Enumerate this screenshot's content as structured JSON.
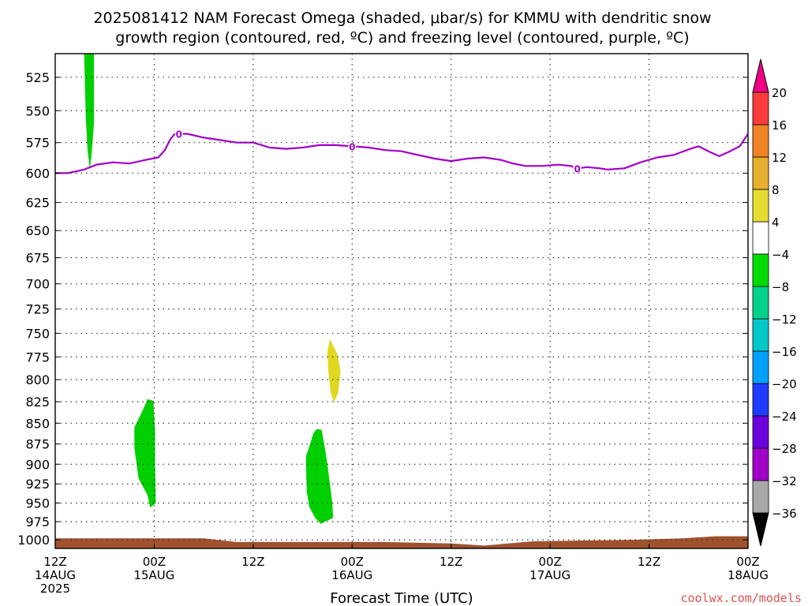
{
  "title_line1": "2025081412 NAM Forecast Omega (shaded, μbar/s) for KMMU with dendritic snow",
  "title_line2": "growth region (contoured, red, ºC) and freezing level (contoured, purple, ºC)",
  "credit": "coolwx.com/models",
  "chart_data": {
    "type": "area",
    "xlabel": "Forecast Time (UTC)",
    "ylabel": "",
    "x_units": "hours since 2025-08-14 12Z",
    "xlim": [
      0,
      84
    ],
    "ylim": [
      1012,
      508
    ],
    "y_scale": "log",
    "y_ticks": [
      525,
      550,
      575,
      600,
      625,
      650,
      675,
      700,
      725,
      750,
      775,
      800,
      825,
      850,
      875,
      900,
      925,
      950,
      975,
      1000
    ],
    "x_ticks": [
      {
        "x": 0,
        "line1": "12Z",
        "line2": "14AUG",
        "line3": "2025"
      },
      {
        "x": 12,
        "line1": "00Z",
        "line2": "15AUG",
        "line3": ""
      },
      {
        "x": 24,
        "line1": "12Z",
        "line2": "",
        "line3": ""
      },
      {
        "x": 36,
        "line1": "00Z",
        "line2": "16AUG",
        "line3": ""
      },
      {
        "x": 48,
        "line1": "12Z",
        "line2": "",
        "line3": ""
      },
      {
        "x": 60,
        "line1": "00Z",
        "line2": "17AUG",
        "line3": ""
      },
      {
        "x": 72,
        "line1": "12Z",
        "line2": "",
        "line3": ""
      },
      {
        "x": 84,
        "line1": "00Z",
        "line2": "18AUG",
        "line3": ""
      }
    ],
    "grid": true,
    "freezing_level": {
      "label": "0",
      "color": "#a000c8",
      "label_x": [
        15,
        36,
        63.3
      ],
      "points": [
        [
          0,
          600
        ],
        [
          1.5,
          600
        ],
        [
          3.5,
          597
        ],
        [
          5,
          593
        ],
        [
          7,
          591
        ],
        [
          9,
          592
        ],
        [
          11,
          589
        ],
        [
          12.5,
          587
        ],
        [
          13.3,
          581
        ],
        [
          13.9,
          573
        ],
        [
          14.5,
          568
        ],
        [
          16,
          568
        ],
        [
          18,
          571
        ],
        [
          20,
          573
        ],
        [
          22,
          575
        ],
        [
          24,
          575
        ],
        [
          26,
          579
        ],
        [
          28,
          580
        ],
        [
          30,
          579
        ],
        [
          32,
          577
        ],
        [
          34,
          577
        ],
        [
          36,
          578
        ],
        [
          38,
          579
        ],
        [
          40,
          581
        ],
        [
          42,
          582
        ],
        [
          44,
          585
        ],
        [
          46,
          588
        ],
        [
          48,
          590
        ],
        [
          50,
          588
        ],
        [
          52,
          587
        ],
        [
          54,
          589
        ],
        [
          55.5,
          592
        ],
        [
          57,
          594
        ],
        [
          59,
          594
        ],
        [
          61,
          593
        ],
        [
          62.5,
          594
        ],
        [
          63.3,
          596
        ],
        [
          64.5,
          595
        ],
        [
          66,
          596
        ],
        [
          67,
          597
        ],
        [
          69,
          596
        ],
        [
          71,
          591
        ],
        [
          73,
          587
        ],
        [
          75,
          585
        ],
        [
          77,
          580
        ],
        [
          78,
          578
        ],
        [
          79.5,
          583
        ],
        [
          80.5,
          586
        ],
        [
          81.5,
          583
        ],
        [
          83,
          578
        ],
        [
          84,
          568
        ]
      ]
    },
    "omega_regions": [
      {
        "value_range": [
          -8,
          -4
        ],
        "color": "#00d000",
        "polygon": [
          [
            3.5,
            508
          ],
          [
            4.7,
            508
          ],
          [
            4.7,
            560
          ],
          [
            4.4,
            585
          ],
          [
            4.2,
            597
          ],
          [
            3.9,
            580
          ],
          [
            3.7,
            555
          ]
        ]
      },
      {
        "value_range": [
          -8,
          -4
        ],
        "color": "#00d000",
        "polygon": [
          [
            11.2,
            822
          ],
          [
            11.9,
            824
          ],
          [
            12.1,
            860
          ],
          [
            12.1,
            900
          ],
          [
            12.2,
            950
          ],
          [
            11.5,
            956
          ],
          [
            11.2,
            940
          ],
          [
            10.1,
            918
          ],
          [
            9.6,
            880
          ],
          [
            9.6,
            855
          ],
          [
            10.6,
            835
          ]
        ]
      },
      {
        "value_range": [
          4,
          8
        ],
        "color": "#e0d820",
        "polygon": [
          [
            33.3,
            756
          ],
          [
            34.2,
            772
          ],
          [
            34.6,
            790
          ],
          [
            34.3,
            815
          ],
          [
            33.8,
            826
          ],
          [
            33.4,
            815
          ],
          [
            33.1,
            790
          ],
          [
            33.0,
            770
          ]
        ]
      },
      {
        "value_range": [
          -8,
          -4
        ],
        "color": "#00d000",
        "polygon": [
          [
            31.7,
            857
          ],
          [
            32.3,
            858
          ],
          [
            32.7,
            880
          ],
          [
            33.0,
            900
          ],
          [
            33.3,
            925
          ],
          [
            33.6,
            950
          ],
          [
            33.7,
            970
          ],
          [
            32.7,
            975
          ],
          [
            32.2,
            978
          ],
          [
            31.5,
            970
          ],
          [
            30.8,
            955
          ],
          [
            30.5,
            935
          ],
          [
            30.4,
            905
          ],
          [
            30.4,
            890
          ],
          [
            30.9,
            875
          ],
          [
            31.3,
            862
          ]
        ]
      }
    ],
    "surface_fill": {
      "color": "#a0522d",
      "top": [
        [
          0,
          998
        ],
        [
          12,
          998
        ],
        [
          18,
          998
        ],
        [
          22,
          1003
        ],
        [
          30,
          1003
        ],
        [
          40,
          1003
        ],
        [
          48,
          1005
        ],
        [
          52,
          1008
        ],
        [
          58,
          1002
        ],
        [
          70,
          1000
        ],
        [
          76,
          998
        ],
        [
          80,
          995
        ],
        [
          84,
          995
        ]
      ]
    },
    "colorbar": {
      "levels": [
        -36,
        -32,
        -28,
        -24,
        -20,
        -16,
        -12,
        -8,
        -4,
        4,
        8,
        12,
        16,
        20
      ],
      "colors": [
        "#000000",
        "#a8a8a8",
        "#a000c8",
        "#6e00dc",
        "#1e3cff",
        "#00a0ff",
        "#00c8c8",
        "#00d28c",
        "#00dc00",
        "#ffffff",
        "#e6dc32",
        "#e6af2d",
        "#f08228",
        "#fa3c3c",
        "#f00082"
      ],
      "labels": [
        "20",
        "16",
        "12",
        "8",
        "4",
        "−4",
        "−8",
        "−12",
        "−16",
        "−20",
        "−24",
        "−28",
        "−32",
        "−36"
      ]
    }
  }
}
